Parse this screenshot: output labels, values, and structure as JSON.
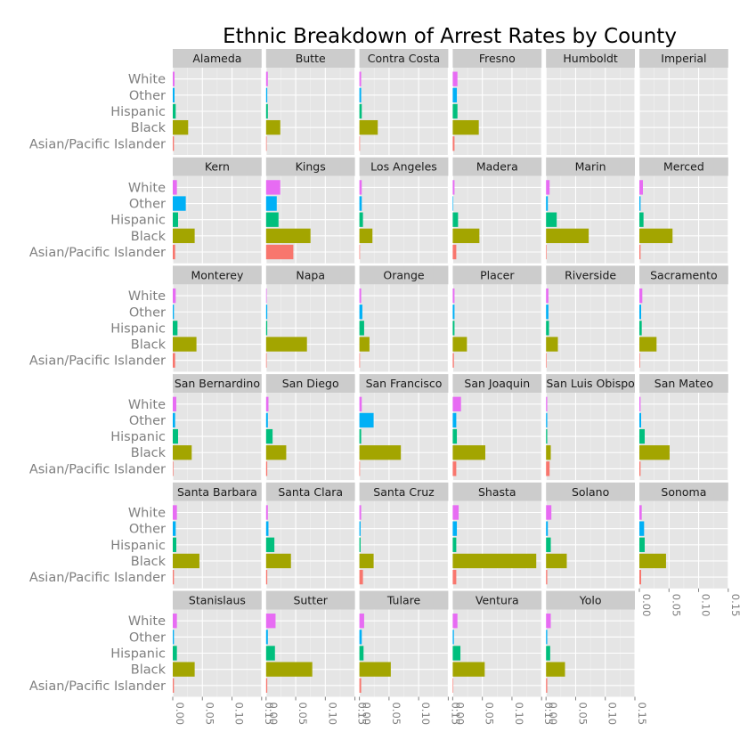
{
  "chart_data": {
    "type": "bar",
    "orientation": "horizontal",
    "faceted": true,
    "title": "Ethnic Breakdown of Arrest Rates by County",
    "xlabel": "",
    "ylabel": "",
    "xlim": [
      0,
      0.15
    ],
    "x_ticks": [
      "0.00",
      "0.05",
      "0.10",
      "0.15"
    ],
    "x_tick_values": [
      0,
      0.05,
      0.1,
      0.15
    ],
    "categories": [
      "Asian/Pacific Islander",
      "Black",
      "Hispanic",
      "Other",
      "White"
    ],
    "colors": {
      "Asian/Pacific Islander": "#F8766D",
      "Black": "#A3A500",
      "Hispanic": "#00BF7D",
      "Other": "#00B0F6",
      "White": "#E76BF3"
    },
    "background": "#E5E5E5",
    "strip_color": "#CCCCCC",
    "grid_color": "#FFFFFF",
    "legend": "none",
    "panels": [
      {
        "county": "Alameda",
        "values": [
          0.002,
          0.026,
          0.005,
          0.003,
          0.003
        ]
      },
      {
        "county": "Butte",
        "values": [
          0.001,
          0.024,
          0.003,
          0.002,
          0.003
        ]
      },
      {
        "county": "Contra Costa",
        "values": [
          0.001,
          0.031,
          0.004,
          0.003,
          0.003
        ]
      },
      {
        "county": "Fresno",
        "values": [
          0.003,
          0.044,
          0.008,
          0.007,
          0.008
        ]
      },
      {
        "county": "Humboldt",
        "values": [
          0,
          0,
          0,
          0,
          0
        ]
      },
      {
        "county": "Imperial",
        "values": [
          0,
          0,
          0,
          0,
          0
        ]
      },
      {
        "county": "Kern",
        "values": [
          0.004,
          0.037,
          0.009,
          0.022,
          0.007
        ]
      },
      {
        "county": "Kings",
        "values": [
          0.046,
          0.075,
          0.021,
          0.018,
          0.024
        ]
      },
      {
        "county": "Los Angeles",
        "values": [
          0.001,
          0.022,
          0.006,
          0.004,
          0.004
        ]
      },
      {
        "county": "Madera",
        "values": [
          0.006,
          0.045,
          0.009,
          0.001,
          0.003
        ]
      },
      {
        "county": "Marin",
        "values": [
          0.001,
          0.072,
          0.018,
          0.003,
          0.006
        ]
      },
      {
        "county": "Merced",
        "values": [
          0.002,
          0.056,
          0.007,
          0.002,
          0.006
        ]
      },
      {
        "county": "Monterey",
        "values": [
          0.004,
          0.04,
          0.008,
          0.002,
          0.005
        ]
      },
      {
        "county": "Napa",
        "values": [
          0.001,
          0.069,
          0.002,
          0.002,
          0.001
        ]
      },
      {
        "county": "Orange",
        "values": [
          0.001,
          0.017,
          0.008,
          0.005,
          0.003
        ]
      },
      {
        "county": "Placer",
        "values": [
          0.002,
          0.024,
          0.003,
          0.003,
          0.003
        ]
      },
      {
        "county": "Riverside",
        "values": [
          0.001,
          0.02,
          0.005,
          0.004,
          0.004
        ]
      },
      {
        "county": "Sacramento",
        "values": [
          0.001,
          0.029,
          0.004,
          0.003,
          0.005
        ]
      },
      {
        "county": "San Bernardino",
        "values": [
          0.001,
          0.032,
          0.009,
          0.004,
          0.006
        ]
      },
      {
        "county": "San Diego",
        "values": [
          0.002,
          0.034,
          0.011,
          0.003,
          0.004
        ]
      },
      {
        "county": "San Francisco",
        "values": [
          0.001,
          0.07,
          0.003,
          0.024,
          0.004
        ]
      },
      {
        "county": "San Joaquin",
        "values": [
          0.006,
          0.055,
          0.007,
          0.006,
          0.014
        ]
      },
      {
        "county": "San Luis Obispo",
        "values": [
          0.006,
          0.008,
          0.002,
          0.002,
          0.002
        ]
      },
      {
        "county": "San Mateo",
        "values": [
          0.002,
          0.051,
          0.009,
          0.003,
          0.002
        ]
      },
      {
        "county": "Santa Barbara",
        "values": [
          0.002,
          0.045,
          0.006,
          0.005,
          0.007
        ]
      },
      {
        "county": "Santa Clara",
        "values": [
          0.002,
          0.042,
          0.014,
          0.004,
          0.003
        ]
      },
      {
        "county": "Santa Cruz",
        "values": [
          0.006,
          0.024,
          0.002,
          0.002,
          0.003
        ]
      },
      {
        "county": "Shasta",
        "values": [
          0.006,
          0.141,
          0.006,
          0.007,
          0.01
        ]
      },
      {
        "county": "Solano",
        "values": [
          0.002,
          0.035,
          0.008,
          0.003,
          0.009
        ]
      },
      {
        "county": "Sonoma",
        "values": [
          0.003,
          0.045,
          0.009,
          0.008,
          0.004
        ]
      },
      {
        "county": "Stanislaus",
        "values": [
          0.002,
          0.037,
          0.007,
          0.002,
          0.007
        ]
      },
      {
        "county": "Sutter",
        "values": [
          0.002,
          0.078,
          0.015,
          0.003,
          0.016
        ]
      },
      {
        "county": "Tulare",
        "values": [
          0.003,
          0.053,
          0.007,
          0.004,
          0.008
        ]
      },
      {
        "county": "Ventura",
        "values": [
          0.001,
          0.054,
          0.013,
          0.002,
          0.008
        ]
      },
      {
        "county": "Yolo",
        "values": [
          0.002,
          0.032,
          0.007,
          0.002,
          0.008
        ]
      }
    ]
  }
}
